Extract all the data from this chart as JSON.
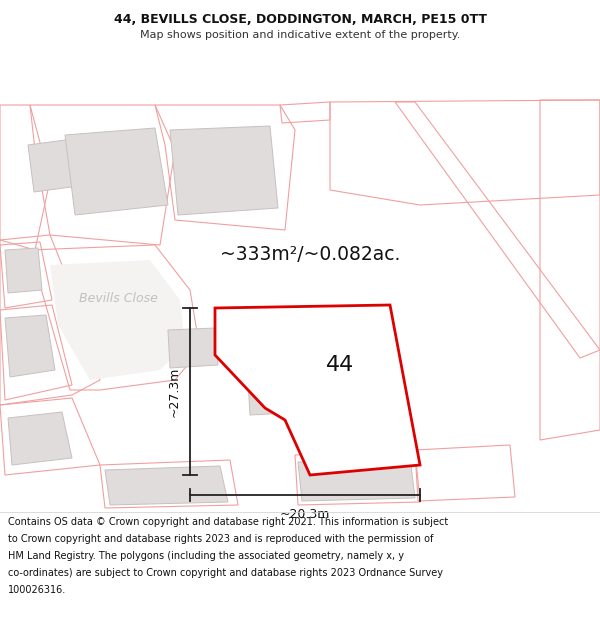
{
  "title_line1": "44, BEVILLS CLOSE, DODDINGTON, MARCH, PE15 0TT",
  "title_line2": "Map shows position and indicative extent of the property.",
  "area_label": "~333m²/~0.082ac.",
  "number_label": "44",
  "dim_height": "~27.3m",
  "dim_width": "~20.3m",
  "street_label": "Bevills Close",
  "background_color": "#ffffff",
  "map_bg_color": "#ffffff",
  "main_poly_color": "#dd0000",
  "main_poly_fill": "#ffffff",
  "cadastral_stroke": "#f0a0a0",
  "building_fill": "#e0dcdc",
  "building_stroke": "#c8c0c0",
  "footer_lines": [
    "Contains OS data © Crown copyright and database right 2021. This information is subject",
    "to Crown copyright and database rights 2023 and is reproduced with the permission of",
    "HM Land Registry. The polygons (including the associated geometry, namely x, y",
    "co-ordinates) are subject to Crown copyright and database rights 2023 Ordnance Survey",
    "100026316."
  ]
}
